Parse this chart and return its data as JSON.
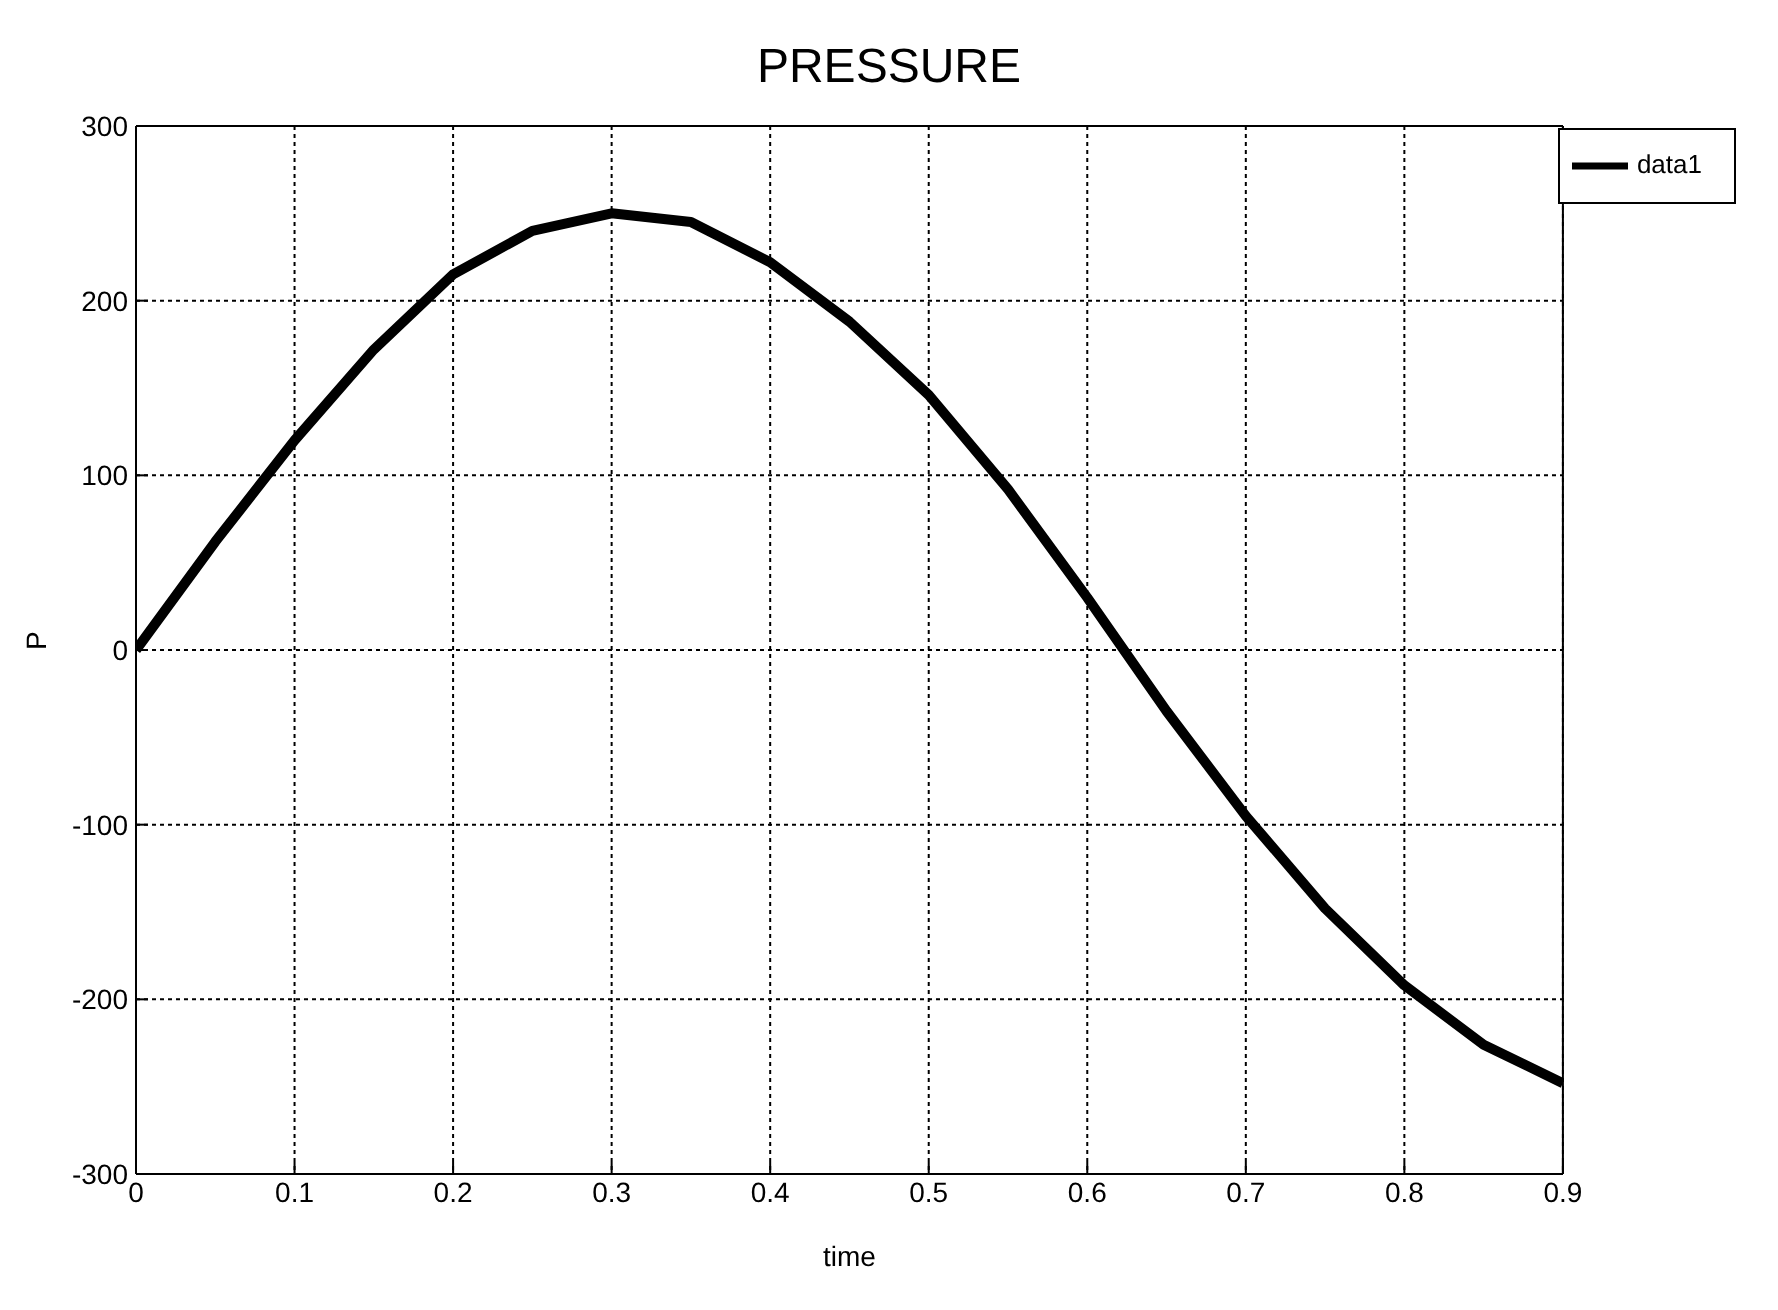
{
  "chart_data": {
    "type": "line",
    "title": "PRESSURE",
    "xlabel": "time",
    "ylabel": "P",
    "x": [
      0,
      0.05,
      0.1,
      0.15,
      0.2,
      0.25,
      0.3,
      0.35,
      0.4,
      0.45,
      0.5,
      0.55,
      0.6,
      0.65,
      0.7,
      0.75,
      0.8,
      0.85,
      0.9
    ],
    "series": [
      {
        "name": "data1",
        "color": "#000000",
        "values": [
          0,
          62,
          120,
          172,
          215,
          240,
          250,
          245,
          222,
          188,
          146,
          92,
          30,
          -35,
          -95,
          -148,
          -192,
          -226,
          -248
        ]
      }
    ],
    "xlim": [
      0,
      0.9
    ],
    "xticks": [
      0,
      0.1,
      0.2,
      0.3,
      0.4,
      0.5,
      0.6,
      0.7,
      0.8,
      0.9
    ],
    "ylim": [
      -300,
      300
    ],
    "yticks": [
      -300,
      -200,
      -100,
      0,
      100,
      200,
      300
    ],
    "grid": true,
    "legend": "top right",
    "marker": "none",
    "line_style": "solid"
  }
}
